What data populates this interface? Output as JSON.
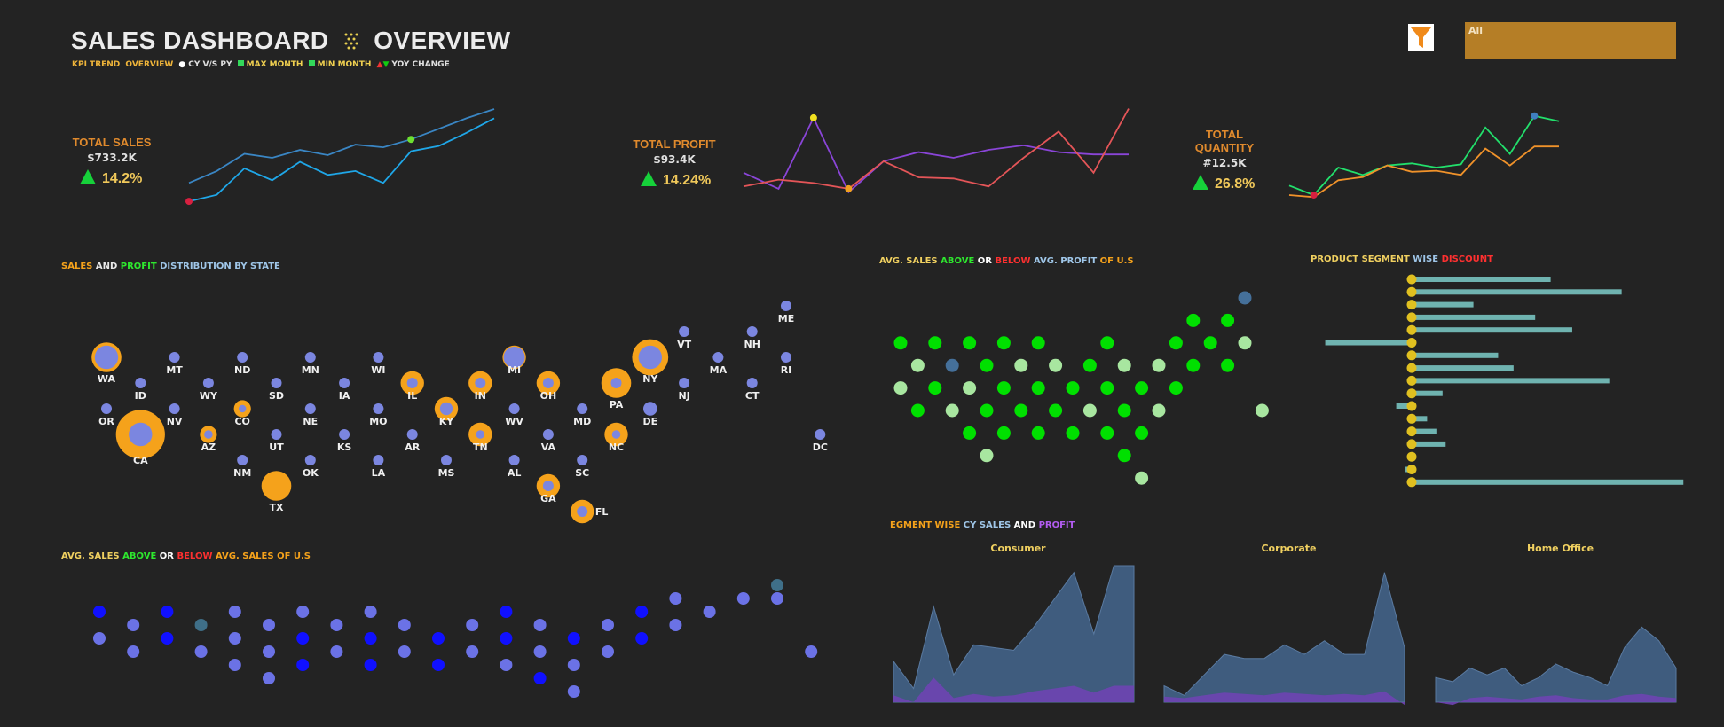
{
  "header": {
    "title_left": "SALES DASHBOARD",
    "title_right": "OVERVIEW",
    "legend": {
      "kpi_trend": "KPI TREND",
      "overview": "OVERVIEW",
      "cy_py": "CY V/S PY",
      "max_month": "MAX MONTH",
      "min_month": "MIN MONTH",
      "yoy_change": "YOY CHANGE"
    }
  },
  "filter": {
    "value": "All"
  },
  "colors": {
    "background": "#232323",
    "sales_orange": "#f5a21b",
    "profit_blue": "#7b86e0",
    "above_green": "#00e000",
    "light_green": "#a8e6a0",
    "steel_blue": "#45709a",
    "deep_blue": "#1010ff",
    "area_blue": "#3f5c7e",
    "area_purple": "#6e44b3"
  },
  "kpis": [
    {
      "label": "TOTAL SALES",
      "value": "$733.2K",
      "pct": "14.2%"
    },
    {
      "label": "TOTAL PROFIT",
      "value": "$93.4K",
      "pct": "14.24%"
    },
    {
      "label_line1": "TOTAL",
      "label_line2": "QUANTITY",
      "value": "#12.5K",
      "pct": "26.8%"
    }
  ],
  "sections": {
    "state_dist": {
      "t1": "SALES",
      "t2": " AND ",
      "t3": "PROFIT",
      "t4": " DISTRIBUTION BY STATE"
    },
    "avg_sales_profit": {
      "t1": "AVG. SALES ",
      "t2": "ABOVE",
      "t3": " OR ",
      "t4": "BELOW",
      "t5": " AVG. PROFIT",
      "t6": " OF U.S"
    },
    "product_discount": {
      "t1": "PRODUCT SEGMENT ",
      "t2": "WISE ",
      "t3": "DISCOUNT"
    },
    "segment": {
      "t1": "EGMENT WISE ",
      "t2": "CY SALES",
      "t3": " AND ",
      "t4": "PROFIT"
    },
    "avg_sales_sales": {
      "t1": "AVG. SALES ",
      "t2": "ABOVE",
      "t3": " OR ",
      "t4": "BELOW",
      "t5": " AVG. SALES OF U.S"
    }
  },
  "chart_data": [
    {
      "type": "line",
      "id": "sales-trend",
      "x": [
        1,
        2,
        3,
        4,
        5,
        6,
        7,
        8,
        9,
        10,
        11,
        12
      ],
      "series": [
        {
          "values": [
            22,
            31,
            44,
            41,
            47,
            43,
            51,
            49,
            55,
            63,
            71,
            78
          ],
          "color": "#3a86c4"
        },
        {
          "values": [
            8,
            13,
            33,
            24,
            38,
            28,
            31,
            22,
            46,
            50,
            60,
            71
          ],
          "color": "#1fa7e8"
        }
      ],
      "max_point": {
        "x": 9,
        "series": 0
      },
      "min_point": {
        "x": 1,
        "series": 1
      },
      "ylim": [
        0,
        80
      ]
    },
    {
      "type": "line",
      "id": "profit-trend",
      "x": [
        1,
        2,
        3,
        4,
        5,
        6,
        7,
        8,
        9,
        10,
        11,
        12
      ],
      "series": [
        {
          "values": [
            42,
            28,
            90,
            25,
            52,
            60,
            55,
            62,
            66,
            60,
            58,
            58
          ],
          "color": "#8a45d8"
        },
        {
          "values": [
            30,
            36,
            33,
            28,
            52,
            38,
            37,
            30,
            55,
            78,
            42,
            98
          ],
          "color": "#e45558"
        }
      ],
      "max_point": {
        "x": 3,
        "series": 0
      },
      "min_point": {
        "x": 4,
        "series": 1
      },
      "ylim": [
        0,
        100
      ]
    },
    {
      "type": "line",
      "id": "quantity-trend",
      "x": [
        1,
        2,
        3,
        4,
        5,
        6,
        7,
        8,
        9,
        10,
        11,
        12
      ],
      "series": [
        {
          "values": [
            25,
            16,
            42,
            35,
            44,
            46,
            42,
            45,
            80,
            55,
            91,
            86
          ],
          "color": "#22e06c"
        },
        {
          "values": [
            16,
            14,
            30,
            33,
            44,
            38,
            39,
            35,
            60,
            44,
            62,
            62
          ],
          "color": "#f0922a"
        }
      ],
      "max_point": {
        "x": 11,
        "series": 0
      },
      "min_point": {
        "x": 2,
        "series": 0
      },
      "ylim": [
        0,
        100
      ]
    },
    {
      "type": "scatter",
      "id": "state-bubbles",
      "title": "SALES AND PROFIT DISTRIBUTION BY STATE",
      "points": [
        {
          "state": "ME",
          "col": 20,
          "row": 0,
          "sales": 0,
          "profit": 1
        },
        {
          "state": "VT",
          "col": 17,
          "row": 1,
          "sales": 0,
          "profit": 1
        },
        {
          "state": "NH",
          "col": 19,
          "row": 1,
          "sales": 0,
          "profit": 1
        },
        {
          "state": "WA",
          "col": 0,
          "row": 2,
          "sales": 3,
          "profit": 3
        },
        {
          "state": "MT",
          "col": 2,
          "row": 2,
          "sales": 0,
          "profit": 1
        },
        {
          "state": "ND",
          "col": 4,
          "row": 2,
          "sales": 0,
          "profit": 1
        },
        {
          "state": "MN",
          "col": 6,
          "row": 2,
          "sales": 0,
          "profit": 1
        },
        {
          "state": "WI",
          "col": 8,
          "row": 2,
          "sales": 0,
          "profit": 1
        },
        {
          "state": "MI",
          "col": 12,
          "row": 2,
          "sales": 2,
          "profit": 2
        },
        {
          "state": "NY",
          "col": 16,
          "row": 2,
          "sales": 4,
          "profit": 3
        },
        {
          "state": "MA",
          "col": 18,
          "row": 2,
          "sales": 0,
          "profit": 1
        },
        {
          "state": "RI",
          "col": 20,
          "row": 2,
          "sales": 0,
          "profit": 1
        },
        {
          "state": "ID",
          "col": 1,
          "row": 3,
          "sales": 0,
          "profit": 1
        },
        {
          "state": "WY",
          "col": 3,
          "row": 3,
          "sales": 0,
          "profit": 1
        },
        {
          "state": "SD",
          "col": 5,
          "row": 3,
          "sales": 0,
          "profit": 1
        },
        {
          "state": "IA",
          "col": 7,
          "row": 3,
          "sales": 0,
          "profit": 1
        },
        {
          "state": "IL",
          "col": 9,
          "row": 3,
          "sales": 2,
          "profit": 1
        },
        {
          "state": "IN",
          "col": 11,
          "row": 3,
          "sales": 2,
          "profit": 1
        },
        {
          "state": "OH",
          "col": 13,
          "row": 3,
          "sales": 2,
          "profit": 1
        },
        {
          "state": "PA",
          "col": 15,
          "row": 3,
          "sales": 3,
          "profit": 1
        },
        {
          "state": "NJ",
          "col": 17,
          "row": 3,
          "sales": 0,
          "profit": 1
        },
        {
          "state": "CT",
          "col": 19,
          "row": 3,
          "sales": 0,
          "profit": 1
        },
        {
          "state": "OR",
          "col": 0,
          "row": 4,
          "sales": 0,
          "profit": 1
        },
        {
          "state": "NV",
          "col": 2,
          "row": 4,
          "sales": 0,
          "profit": 1
        },
        {
          "state": "CO",
          "col": 4,
          "row": 4,
          "sales": 1,
          "profit": 0.7
        },
        {
          "state": "NE",
          "col": 6,
          "row": 4,
          "sales": 0,
          "profit": 1
        },
        {
          "state": "MO",
          "col": 8,
          "row": 4,
          "sales": 0,
          "profit": 1
        },
        {
          "state": "KY",
          "col": 10,
          "row": 4,
          "sales": 2,
          "profit": 1.2
        },
        {
          "state": "WV",
          "col": 12,
          "row": 4,
          "sales": 0,
          "profit": 1
        },
        {
          "state": "MD",
          "col": 14,
          "row": 4,
          "sales": 0,
          "profit": 1
        },
        {
          "state": "DE",
          "col": 16,
          "row": 4,
          "sales": 0,
          "profit": 1.3
        },
        {
          "state": "CA",
          "col": 1,
          "row": 5,
          "sales": 6,
          "profit": 4
        },
        {
          "state": "AZ",
          "col": 3,
          "row": 5,
          "sales": 1,
          "profit": 0.8
        },
        {
          "state": "UT",
          "col": 5,
          "row": 5,
          "sales": 0,
          "profit": 1
        },
        {
          "state": "KS",
          "col": 7,
          "row": 5,
          "sales": 0,
          "profit": 1
        },
        {
          "state": "AR",
          "col": 9,
          "row": 5,
          "sales": 0,
          "profit": 1
        },
        {
          "state": "TN",
          "col": 11,
          "row": 5,
          "sales": 2,
          "profit": 0.8
        },
        {
          "state": "VA",
          "col": 13,
          "row": 5,
          "sales": 0,
          "profit": 1
        },
        {
          "state": "NC",
          "col": 15,
          "row": 5,
          "sales": 2,
          "profit": 0.8
        },
        {
          "state": "DC",
          "col": 21,
          "row": 5,
          "sales": 0,
          "profit": 1
        },
        {
          "state": "NM",
          "col": 4,
          "row": 6,
          "sales": 0,
          "profit": 1
        },
        {
          "state": "OK",
          "col": 6,
          "row": 6,
          "sales": 0,
          "profit": 1
        },
        {
          "state": "LA",
          "col": 8,
          "row": 6,
          "sales": 0,
          "profit": 1
        },
        {
          "state": "MS",
          "col": 10,
          "row": 6,
          "sales": 0,
          "profit": 1
        },
        {
          "state": "AL",
          "col": 12,
          "row": 6,
          "sales": 0,
          "profit": 1
        },
        {
          "state": "SC",
          "col": 14,
          "row": 6,
          "sales": 0,
          "profit": 1
        },
        {
          "state": "TX",
          "col": 5,
          "row": 7,
          "sales": 3,
          "profit": 0
        },
        {
          "state": "GA",
          "col": 13,
          "row": 7,
          "sales": 2,
          "profit": 1
        },
        {
          "state": "FL",
          "col": 14,
          "row": 8,
          "sales": 2,
          "profit": 1
        }
      ]
    },
    {
      "type": "bar",
      "id": "product-discount",
      "title": "PRODUCT SEGMENT WISE DISCOUNT",
      "values": [
        0.45,
        0.68,
        0.2,
        0.4,
        0.52,
        -0.28,
        0.28,
        0.33,
        0.64,
        0.1,
        -0.05,
        0.05,
        0.08,
        0.11,
        0.01,
        -0.02,
        0.88
      ],
      "color": "#6fb3b0"
    },
    {
      "type": "area",
      "id": "segment-consumer",
      "title": "Consumer",
      "sales": [
        30,
        10,
        70,
        20,
        42,
        40,
        38,
        55,
        75,
        95,
        50,
        100,
        100
      ],
      "profit": [
        5,
        0,
        18,
        3,
        6,
        4,
        5,
        8,
        10,
        12,
        7,
        12,
        12
      ]
    },
    {
      "type": "area",
      "id": "segment-corporate",
      "title": "Corporate",
      "sales": [
        12,
        5,
        20,
        35,
        32,
        32,
        42,
        35,
        45,
        35,
        35,
        95,
        40
      ],
      "profit": [
        4,
        3,
        5,
        7,
        6,
        5,
        7,
        6,
        5,
        6,
        5,
        8,
        -2
      ]
    },
    {
      "type": "area",
      "id": "segment-home-office",
      "title": "Home Office",
      "sales": [
        18,
        15,
        25,
        20,
        25,
        12,
        18,
        28,
        22,
        18,
        12,
        40,
        55,
        45,
        25
      ],
      "profit": [
        0,
        -2,
        3,
        4,
        3,
        2,
        4,
        5,
        3,
        2,
        2,
        5,
        6,
        4,
        3
      ]
    }
  ]
}
